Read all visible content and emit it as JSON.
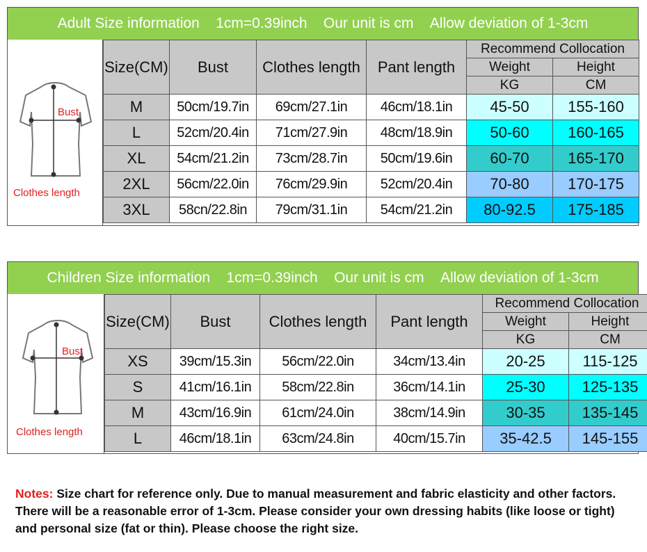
{
  "colors": {
    "banner": "#92d050",
    "header_gray": "#c8c8c8",
    "row_colors": [
      "#ccffff",
      "#00ffff",
      "#33cccc",
      "#99ccff",
      "#00ccff"
    ],
    "child_row_colors": [
      "#ccffff",
      "#00ffff",
      "#33cccc",
      "#99ccff"
    ],
    "notes_label": "#e0201f"
  },
  "adult": {
    "banner": [
      "Adult Size information",
      "1cm=0.39inch",
      "Our unit is cm",
      "Allow deviation of 1-3cm"
    ],
    "figure": {
      "icon": "tshirt-outline-icon",
      "bust_label": "Bust",
      "length_label": "Clothes length"
    },
    "headers": {
      "size": "Size(CM)",
      "bust": "Bust",
      "clothes_length": "Clothes length",
      "pant_length": "Pant length",
      "recommend": "Recommend Collocation",
      "weight": "Weight",
      "height": "Height",
      "kg": "KG",
      "cm": "CM"
    },
    "rows": [
      {
        "size": "M",
        "bust": "50cm/19.7in",
        "length": "69cm/27.1in",
        "pant": "46cm/18.1in",
        "weight": "45-50",
        "height": "155-160"
      },
      {
        "size": "L",
        "bust": "52cm/20.4in",
        "length": "71cm/27.9in",
        "pant": "48cm/18.9in",
        "weight": "50-60",
        "height": "160-165"
      },
      {
        "size": "XL",
        "bust": "54cm/21.2in",
        "length": "73cm/28.7in",
        "pant": "50cm/19.6in",
        "weight": "60-70",
        "height": "165-170"
      },
      {
        "size": "2XL",
        "bust": "56cm/22.0in",
        "length": "76cm/29.9in",
        "pant": "52cm/20.4in",
        "weight": "70-80",
        "height": "170-175"
      },
      {
        "size": "3XL",
        "bust": "58cn/22.8in",
        "length": "79cm/31.1in",
        "pant": "54cm/21.2in",
        "weight": "80-92.5",
        "height": "175-185"
      }
    ]
  },
  "children": {
    "banner": [
      "Children Size information",
      "1cm=0.39inch",
      "Our unit is cm",
      "Allow deviation of 1-3cm"
    ],
    "figure": {
      "icon": "tshirt-outline-icon",
      "bust_label": "Bust",
      "length_label": "Clothes length"
    },
    "headers": {
      "size": "Size(CM)",
      "bust": "Bust",
      "clothes_length": "Clothes length",
      "pant_length": "Pant length",
      "recommend": "Recommend Collocation",
      "weight": "Weight",
      "height": "Height",
      "kg": "KG",
      "cm": "CM"
    },
    "rows": [
      {
        "size": "XS",
        "bust": "39cm/15.3in",
        "length": "56cm/22.0in",
        "pant": "34cm/13.4in",
        "weight": "20-25",
        "height": "115-125"
      },
      {
        "size": "S",
        "bust": "41cm/16.1in",
        "length": "58cm/22.8in",
        "pant": "36cm/14.1in",
        "weight": "25-30",
        "height": "125-135"
      },
      {
        "size": "M",
        "bust": "43cm/16.9in",
        "length": "61cm/24.0in",
        "pant": "38cm/14.9in",
        "weight": "30-35",
        "height": "135-145"
      },
      {
        "size": "L",
        "bust": "46cm/18.1in",
        "length": "63cm/24.8in",
        "pant": "40cm/15.7in",
        "weight": "35-42.5",
        "height": "145-155"
      }
    ]
  },
  "notes": {
    "label": "Notes:",
    "text": " Size chart for reference only. Due to manual measurement and fabric elasticity and other factors. There will be a reasonable error of 1-3cm. Please consider your own dressing habits (like loose or tight) and personal size (fat or thin). Please choose the right size."
  }
}
